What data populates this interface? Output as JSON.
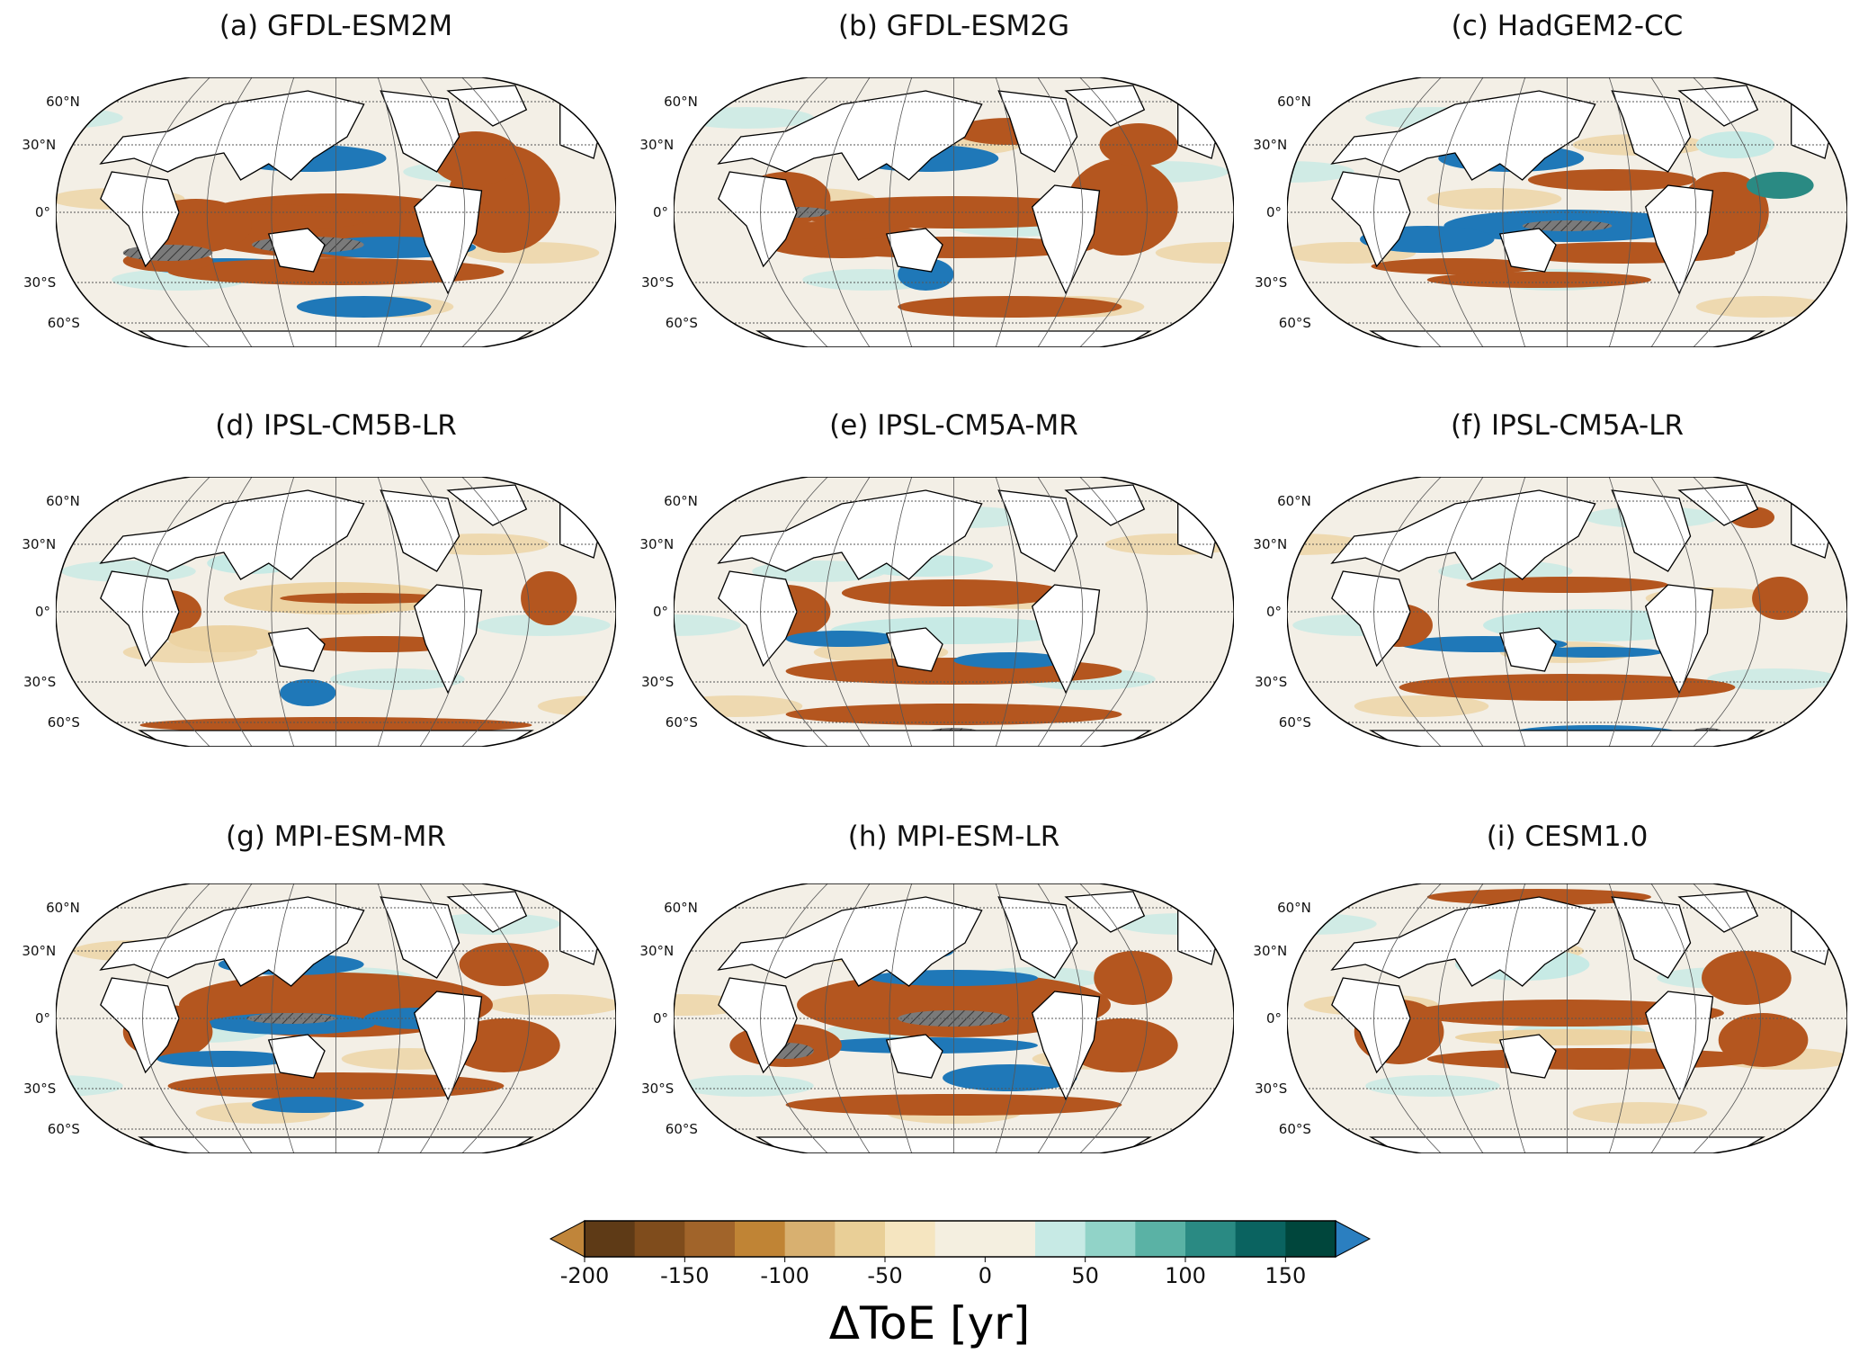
{
  "panels": [
    {
      "title": "(a) GFDL-ESM2M"
    },
    {
      "title": "(b) GFDL-ESM2G"
    },
    {
      "title": "(c) HadGEM2-CC"
    },
    {
      "title": "(d) IPSL-CM5B-LR"
    },
    {
      "title": "(e) IPSL-CM5A-MR"
    },
    {
      "title": "(f) IPSL-CM5A-LR"
    },
    {
      "title": "(g) MPI-ESM-MR"
    },
    {
      "title": "(h) MPI-ESM-LR"
    },
    {
      "title": "(i) CESM1.0"
    }
  ],
  "lat_labels": [
    "60°N",
    "30°N",
    "0°",
    "30°S",
    "60°S"
  ],
  "colorbar": {
    "label": "ΔToE [yr]",
    "ticks": [
      "-200",
      "-150",
      "-100",
      "-50",
      "0",
      "50",
      "100",
      "150"
    ],
    "tick_values": [
      -200,
      -150,
      -100,
      -50,
      0,
      50,
      100,
      150
    ],
    "bounds": [
      -200,
      -175,
      -150,
      -125,
      -100,
      -75,
      -50,
      -25,
      0,
      25,
      50,
      75,
      100,
      125,
      150,
      175
    ],
    "colors": [
      "#5e3a16",
      "#7f4c1c",
      "#a1642a",
      "#c08435",
      "#d8b070",
      "#e9cf97",
      "#f5e5c0",
      "#f4efe0",
      "#f4efe0",
      "#c7eae5",
      "#91d3c8",
      "#5ab2a5",
      "#2a8a83",
      "#0a6360",
      "#00463c"
    ],
    "under_color": "#c0853a",
    "over_color": "#2b7fc0",
    "extend": "both"
  },
  "colors": {
    "strong_negative": "#b4561f",
    "strong_positive": "#1f78b8",
    "hatch": "#7a7a7a",
    "land": "#ffffff"
  }
}
